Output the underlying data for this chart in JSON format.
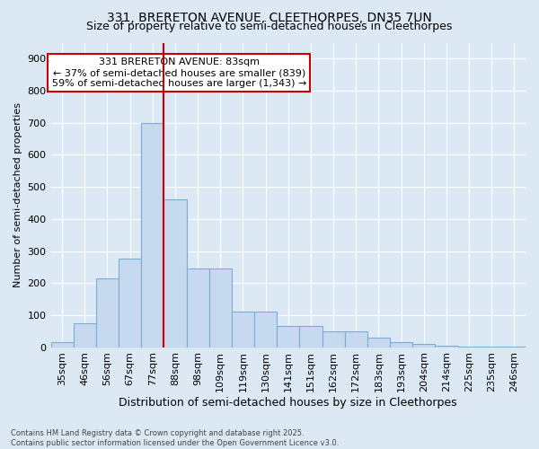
{
  "title1": "331, BRERETON AVENUE, CLEETHORPES, DN35 7UN",
  "title2": "Size of property relative to semi-detached houses in Cleethorpes",
  "xlabel": "Distribution of semi-detached houses by size in Cleethorpes",
  "ylabel": "Number of semi-detached properties",
  "categories": [
    "35sqm",
    "46sqm",
    "56sqm",
    "67sqm",
    "77sqm",
    "88sqm",
    "98sqm",
    "109sqm",
    "119sqm",
    "130sqm",
    "141sqm",
    "151sqm",
    "162sqm",
    "172sqm",
    "183sqm",
    "193sqm",
    "204sqm",
    "214sqm",
    "225sqm",
    "235sqm",
    "246sqm"
  ],
  "values": [
    15,
    75,
    215,
    275,
    700,
    460,
    245,
    245,
    110,
    110,
    65,
    65,
    50,
    50,
    30,
    15,
    10,
    5,
    2,
    1,
    2
  ],
  "bar_color": "#c6d9ee",
  "bar_edge_color": "#7aadd4",
  "ref_line_label": "331 BRERETON AVENUE: 83sqm",
  "annotation_line2": "← 37% of semi-detached houses are smaller (839)",
  "annotation_line3": "59% of semi-detached houses are larger (1,343) →",
  "annotation_box_facecolor": "#ffffff",
  "annotation_box_edgecolor": "#cc0000",
  "ref_line_color": "#cc0000",
  "background_color": "#dce9f5",
  "plot_bg_color": "#dce9f5",
  "footer": "Contains HM Land Registry data © Crown copyright and database right 2025.\nContains public sector information licensed under the Open Government Licence v3.0.",
  "ylim": [
    0,
    950
  ],
  "yticks": [
    0,
    100,
    200,
    300,
    400,
    500,
    600,
    700,
    800,
    900
  ],
  "ref_bar_index": 5,
  "title1_fontsize": 10,
  "title2_fontsize": 9,
  "xlabel_fontsize": 9,
  "ylabel_fontsize": 8,
  "tick_fontsize": 8,
  "footer_fontsize": 6,
  "annotation_fontsize": 8
}
